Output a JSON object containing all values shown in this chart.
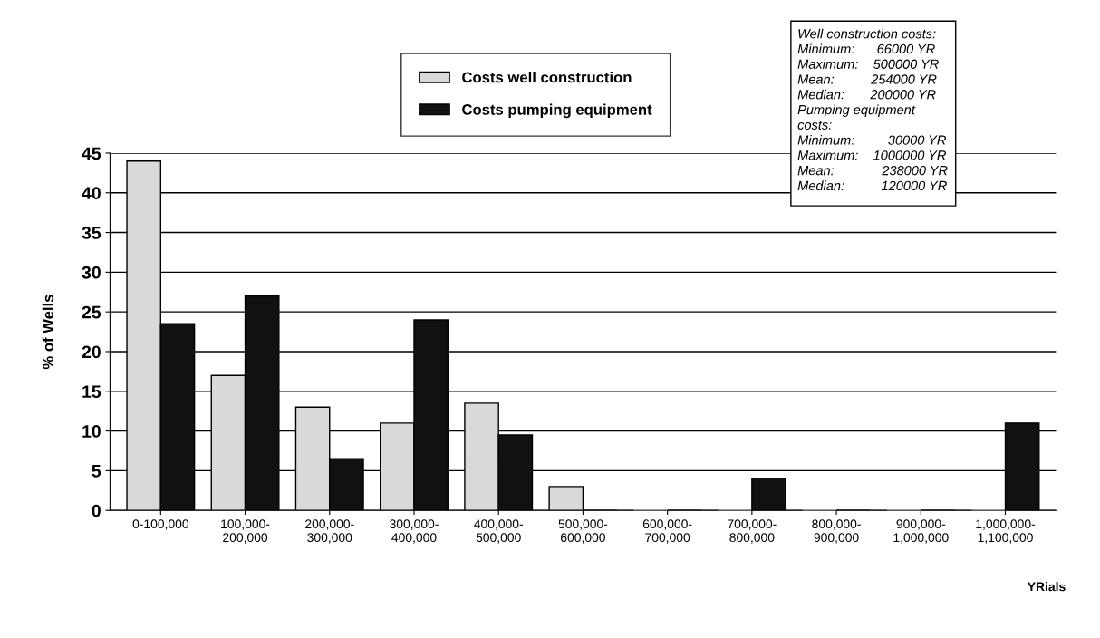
{
  "chart_data": {
    "type": "bar",
    "ylabel": "% of Wells",
    "xlabel": "YRials",
    "categories": [
      "0-100,000",
      "100,000-\n200,000",
      "200,000-\n300,000",
      "300,000-\n400,000",
      "400,000-\n500,000",
      "500,000-\n600,000",
      "600,000-\n700,000",
      "700,000-\n800,000",
      "800,000-\n900,000",
      "900,000-\n1,000,000",
      "1,000,000-\n1,100,000"
    ],
    "series": [
      {
        "name": "Costs well construction",
        "color": "#d9d9d9",
        "values": [
          44,
          17,
          13,
          11,
          13.5,
          3,
          0,
          0,
          0,
          0,
          0
        ]
      },
      {
        "name": "Costs pumping equipment",
        "color": "#111111",
        "values": [
          23.5,
          27,
          6.5,
          24,
          9.5,
          0,
          0,
          4,
          0,
          0,
          11
        ]
      }
    ],
    "ylim": [
      0,
      45
    ],
    "yticks": [
      0,
      5,
      10,
      15,
      20,
      25,
      30,
      35,
      40,
      45
    ],
    "grid": "y",
    "legend": "top",
    "annotations": [
      "Well construction costs:",
      "Minimum:      66000 YR",
      "Maximum:    500000 YR",
      "Mean:          254000 YR",
      "Median:       200000 YR",
      "Pumping equipment",
      "costs:",
      "Minimum:         30000 YR",
      "Maximum:    1000000 YR",
      "Mean:             238000 YR",
      "Median:          120000 YR"
    ]
  }
}
